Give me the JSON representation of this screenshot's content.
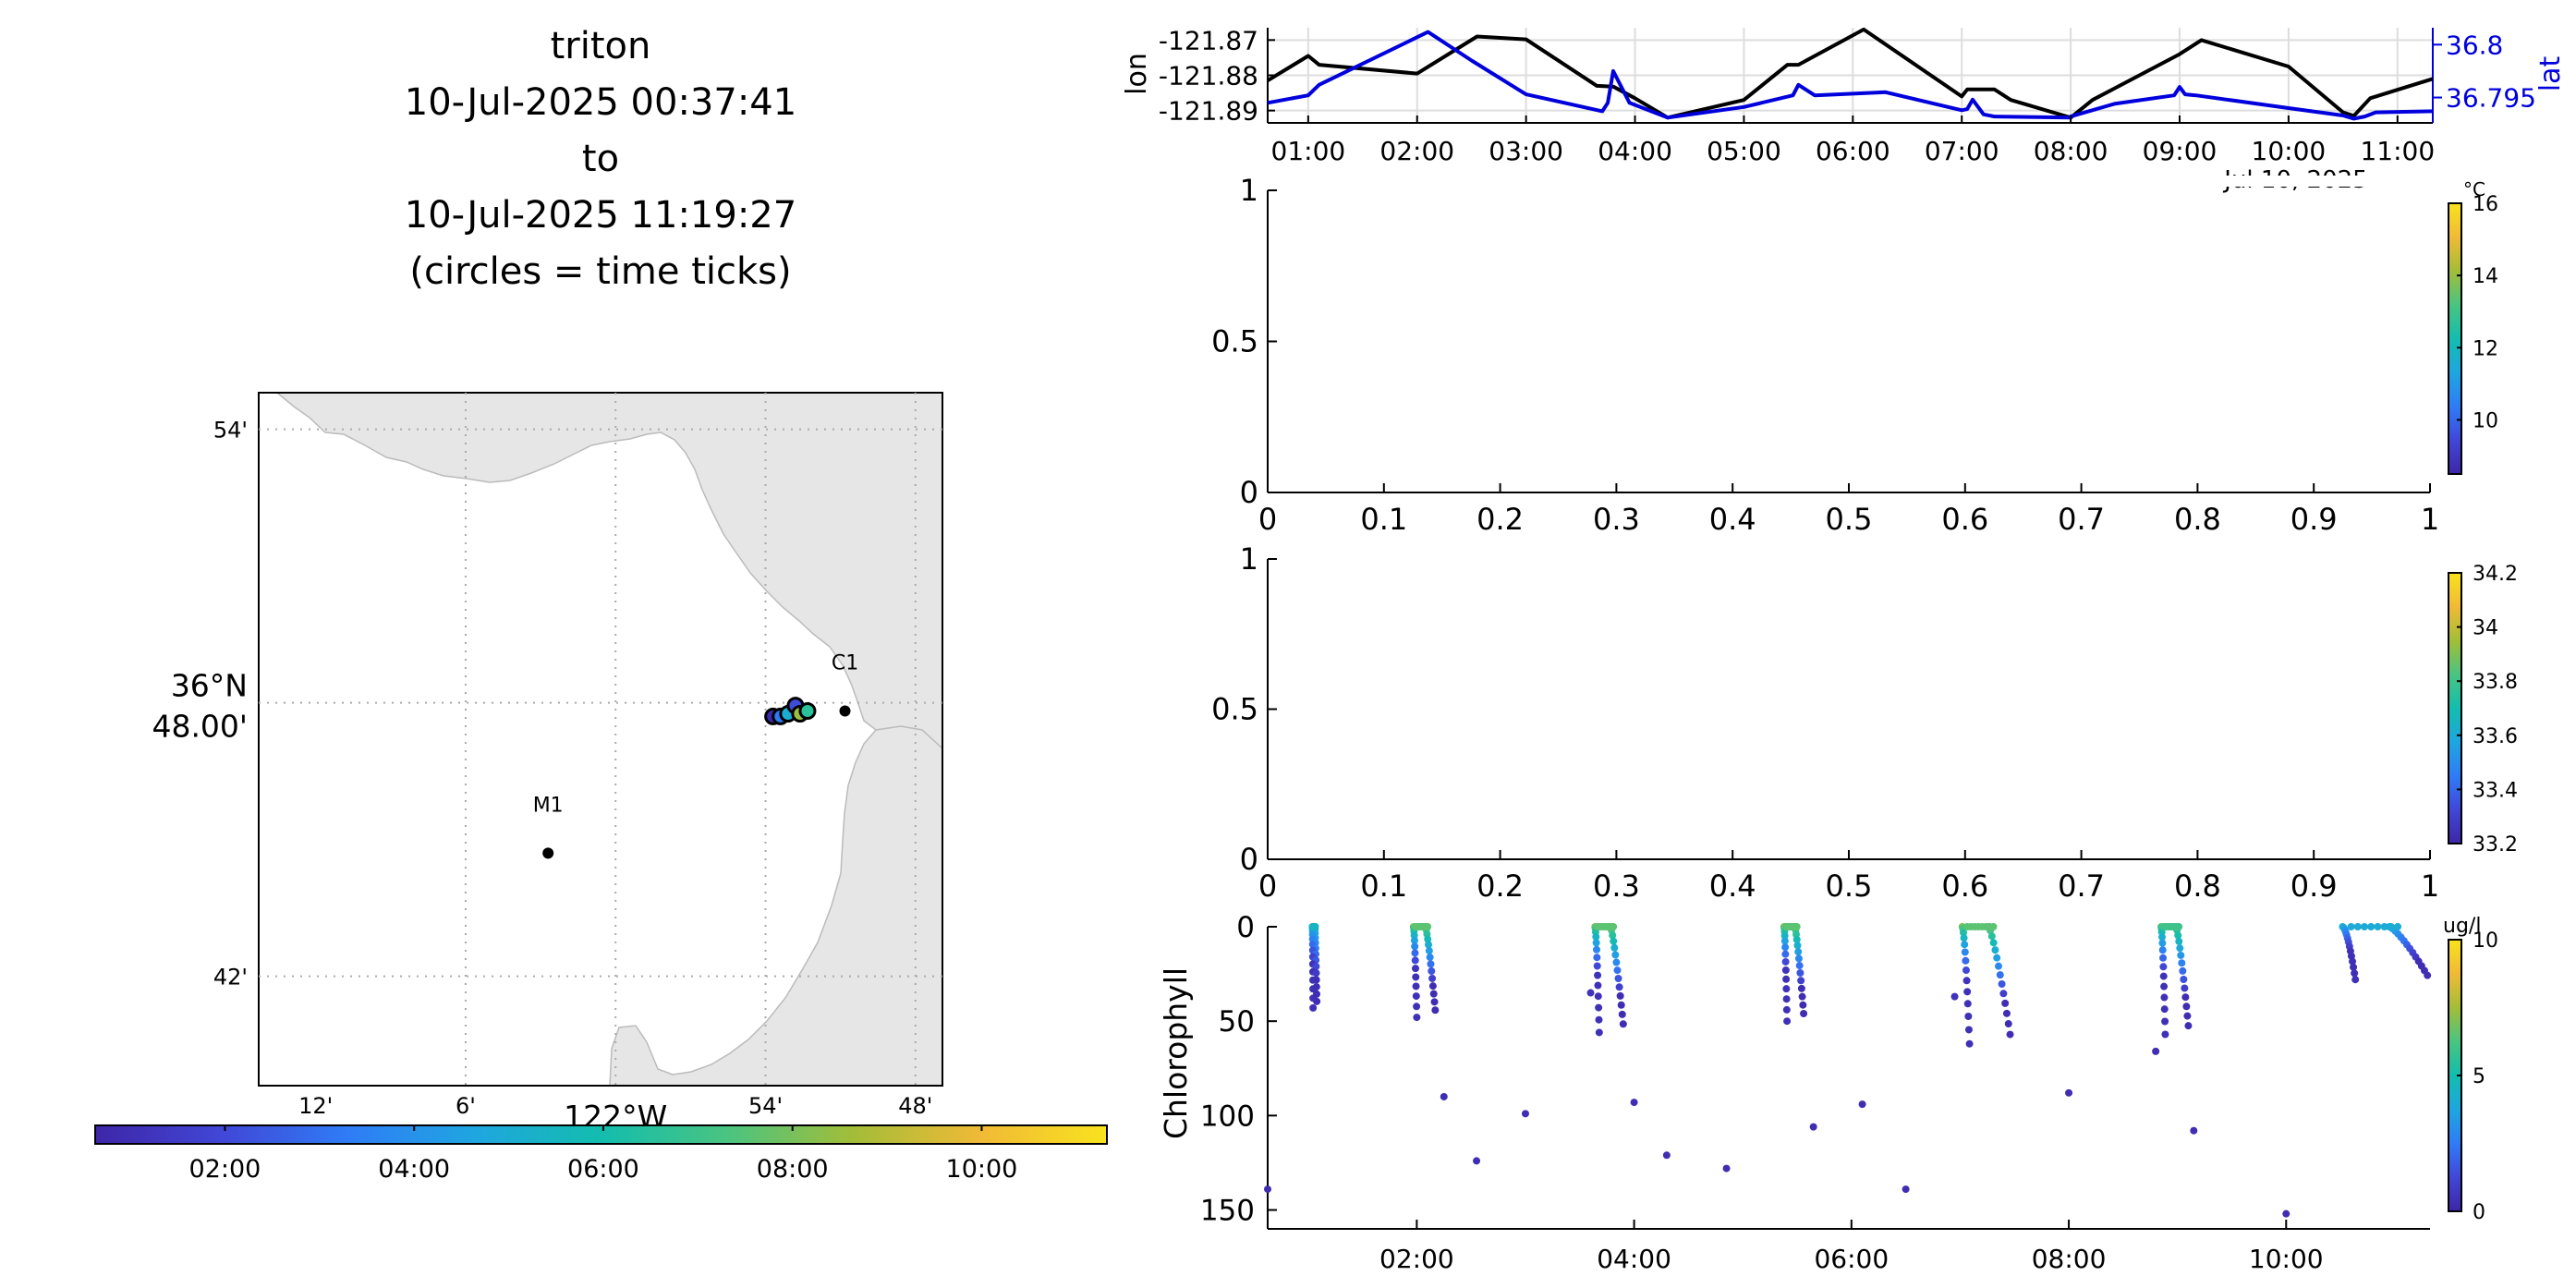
{
  "title": {
    "platform": "triton",
    "start": "10-Jul-2025 00:37:41",
    "sep": "to",
    "end": "10-Jul-2025 11:19:27",
    "note": "(circles = time ticks)"
  },
  "colors": {
    "land": "#e6e6e6",
    "lon_line": "#000000",
    "lat_line": "#0000dd",
    "colormap": [
      "#3e26a8",
      "#4147d6",
      "#2f7cf6",
      "#1fa6e0",
      "#13bdae",
      "#4ac481",
      "#a3bd38",
      "#f0ba37",
      "#f9e21e"
    ]
  },
  "map": {
    "lat_ticks": [
      "54'",
      "36°N",
      "48.00'",
      "42'"
    ],
    "lon_ticks": [
      "12'",
      "6'",
      "122°W",
      "54'",
      "48'"
    ],
    "stations": [
      {
        "name": "M1",
        "lon": -122.045,
        "lat": 36.745
      },
      {
        "name": "C1",
        "lon": -121.847,
        "lat": 36.797
      }
    ],
    "track_points": [
      {
        "lon": -121.895,
        "lat": 36.795,
        "hour": 0.8
      },
      {
        "lon": -121.89,
        "lat": 36.795,
        "hour": 3.2
      },
      {
        "lon": -121.885,
        "lat": 36.796,
        "hour": 5.0
      },
      {
        "lon": -121.88,
        "lat": 36.799,
        "hour": 2.1
      },
      {
        "lon": -121.877,
        "lat": 36.796,
        "hour": 8.5
      },
      {
        "lon": -121.872,
        "lat": 36.797,
        "hour": 6.5
      }
    ]
  },
  "time_colorbar": {
    "ticks": [
      "02:00",
      "04:00",
      "06:00",
      "08:00",
      "10:00"
    ]
  },
  "chart_data": [
    {
      "type": "line",
      "ylabel": "lon",
      "y2label": "lat",
      "x_ticks": [
        "01:00",
        "02:00",
        "03:00",
        "04:00",
        "05:00",
        "06:00",
        "07:00",
        "08:00",
        "09:00",
        "10:00",
        "11:00"
      ],
      "x_annotation": "Jul 10, 2025",
      "y_ticks": [
        "-121.87",
        "-121.88",
        "-121.89"
      ],
      "y2_ticks": [
        "36.8",
        "36.795"
      ],
      "ylim": [
        -121.8935,
        -121.8665
      ],
      "y2lim": [
        36.7926,
        36.8016
      ],
      "xlim": [
        0.628,
        11.324
      ],
      "series": [
        {
          "name": "lon",
          "x": [
            0.628,
            1.0,
            1.1,
            2.0,
            2.55,
            3.0,
            3.65,
            3.8,
            4.0,
            4.3,
            5.0,
            5.4,
            5.5,
            6.1,
            7.0,
            7.05,
            7.3,
            7.45,
            8.0,
            8.0,
            8.2,
            9.0,
            9.2,
            10.0,
            10.5,
            10.6,
            10.75,
            11.324
          ],
          "y": [
            -121.8815,
            -121.8745,
            -121.877,
            -121.8795,
            -121.869,
            -121.8698,
            -121.883,
            -121.8832,
            -121.8865,
            -121.892,
            -121.887,
            -121.877,
            -121.877,
            -121.867,
            -121.886,
            -121.884,
            -121.884,
            -121.887,
            -121.892,
            -121.892,
            -121.887,
            -121.874,
            -121.87,
            -121.8775,
            -121.8905,
            -121.8915,
            -121.8865,
            -121.881
          ]
        },
        {
          "name": "lat",
          "x": [
            0.628,
            1.0,
            1.1,
            2.1,
            2.5,
            3.0,
            3.7,
            3.75,
            3.8,
            3.95,
            4.3,
            5.0,
            5.45,
            5.5,
            5.65,
            6.3,
            7.0,
            7.05,
            7.1,
            7.2,
            7.3,
            8.0,
            8.0,
            8.4,
            8.95,
            9.0,
            9.05,
            9.15,
            10.0,
            10.5,
            10.6,
            10.7,
            10.8,
            11.324
          ],
          "y": [
            36.7945,
            36.7952,
            36.7962,
            36.8012,
            36.7985,
            36.7953,
            36.7937,
            36.7945,
            36.7975,
            36.7945,
            36.7931,
            36.7941,
            36.7952,
            36.7962,
            36.7952,
            36.7955,
            36.7938,
            36.7939,
            36.7948,
            36.7934,
            36.7932,
            36.7931,
            36.7932,
            36.7944,
            36.7952,
            36.796,
            36.7953,
            36.7952,
            36.794,
            36.7933,
            36.793,
            36.7932,
            36.7936,
            36.7937
          ]
        }
      ]
    },
    {
      "type": "scatter",
      "xlim": [
        0,
        1
      ],
      "ylim": [
        0,
        1
      ],
      "x_ticks": [
        "0",
        "0.1",
        "0.2",
        "0.3",
        "0.4",
        "0.5",
        "0.6",
        "0.7",
        "0.8",
        "0.9",
        "1"
      ],
      "y_ticks": [
        "1",
        "0.5",
        "0"
      ],
      "colorbar": {
        "label": "°C",
        "ticks": [
          "16",
          "14",
          "12",
          "10"
        ],
        "range": [
          8.5,
          16
        ]
      },
      "points": []
    },
    {
      "type": "scatter",
      "xlim": [
        0,
        1
      ],
      "ylim": [
        0,
        1
      ],
      "x_ticks": [
        "0",
        "0.1",
        "0.2",
        "0.3",
        "0.4",
        "0.5",
        "0.6",
        "0.7",
        "0.8",
        "0.9",
        "1"
      ],
      "y_ticks": [
        "1",
        "0.5",
        "0"
      ],
      "colorbar": {
        "label": "",
        "ticks": [
          "34.2",
          "34",
          "33.8",
          "33.6",
          "33.4",
          "33.2"
        ],
        "range": [
          33.2,
          34.2
        ]
      },
      "points": []
    },
    {
      "type": "scatter",
      "ylabel": "Chlorophyll",
      "xlim": [
        0.628,
        11.324
      ],
      "ylim": [
        0,
        160
      ],
      "x_ticks": [
        "02:00",
        "04:00",
        "06:00",
        "08:00",
        "10:00"
      ],
      "y_ticks": [
        "0",
        "50",
        "100",
        "150"
      ],
      "colorbar": {
        "label": "ug/l",
        "ticks": [
          "10",
          "5",
          "0"
        ],
        "range": [
          0,
          10
        ]
      },
      "profiles": [
        {
          "x0": 1.04,
          "x1": 1.08,
          "min_depth": 43,
          "top_value": 4.5
        },
        {
          "x0": 1.97,
          "x1": 2.17,
          "min_depth": 48,
          "top_value": 6.5
        },
        {
          "x0": 3.64,
          "x1": 3.9,
          "min_depth": 56,
          "top_value": 6.5
        },
        {
          "x0": 5.38,
          "x1": 5.56,
          "min_depth": 50,
          "top_value": 6.5
        },
        {
          "x0": 7.02,
          "x1": 7.46,
          "min_depth": 62,
          "top_value": 6.5
        },
        {
          "x0": 8.85,
          "x1": 9.1,
          "min_depth": 57,
          "top_value": 6.0
        },
        {
          "x0": 10.52,
          "x1": 11.3,
          "min_depth": 28,
          "top_value": 4.0
        }
      ],
      "points": [
        {
          "x": 0.628,
          "y": 139,
          "v": 0.3
        },
        {
          "x": 2.25,
          "y": 90,
          "v": 0.3
        },
        {
          "x": 2.55,
          "y": 124,
          "v": 0.3
        },
        {
          "x": 3.0,
          "y": 99,
          "v": 0.3
        },
        {
          "x": 3.6,
          "y": 35,
          "v": 0.5
        },
        {
          "x": 4.0,
          "y": 93,
          "v": 0.3
        },
        {
          "x": 4.3,
          "y": 121,
          "v": 0.3
        },
        {
          "x": 4.85,
          "y": 128,
          "v": 0.3
        },
        {
          "x": 5.65,
          "y": 106,
          "v": 0.3
        },
        {
          "x": 6.1,
          "y": 94,
          "v": 0.3
        },
        {
          "x": 6.5,
          "y": 139,
          "v": 0.3
        },
        {
          "x": 6.95,
          "y": 37,
          "v": 0.5
        },
        {
          "x": 8.0,
          "y": 88,
          "v": 0.3
        },
        {
          "x": 8.8,
          "y": 66,
          "v": 0.3
        },
        {
          "x": 9.15,
          "y": 108,
          "v": 0.3
        },
        {
          "x": 10.0,
          "y": 152,
          "v": 0.3
        }
      ]
    }
  ]
}
